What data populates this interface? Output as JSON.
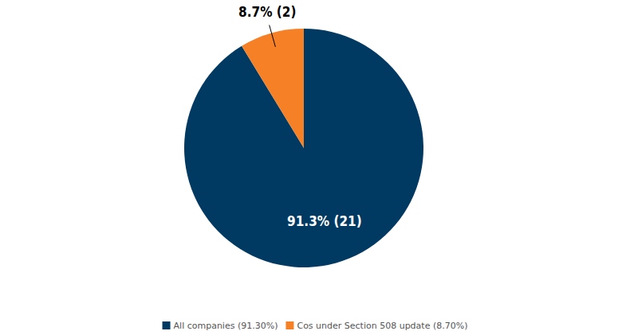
{
  "chart_data": {
    "type": "pie",
    "categories": [
      "All companies (91.30%)",
      "Cos under Section 508 update (8.70%)"
    ],
    "values": [
      91.3,
      8.7
    ],
    "value_labels": [
      "91.3% (21)",
      "8.7% (2)"
    ],
    "colors": [
      "#003a63",
      "#f58025"
    ],
    "data_labels": true,
    "legend": "bottom"
  }
}
